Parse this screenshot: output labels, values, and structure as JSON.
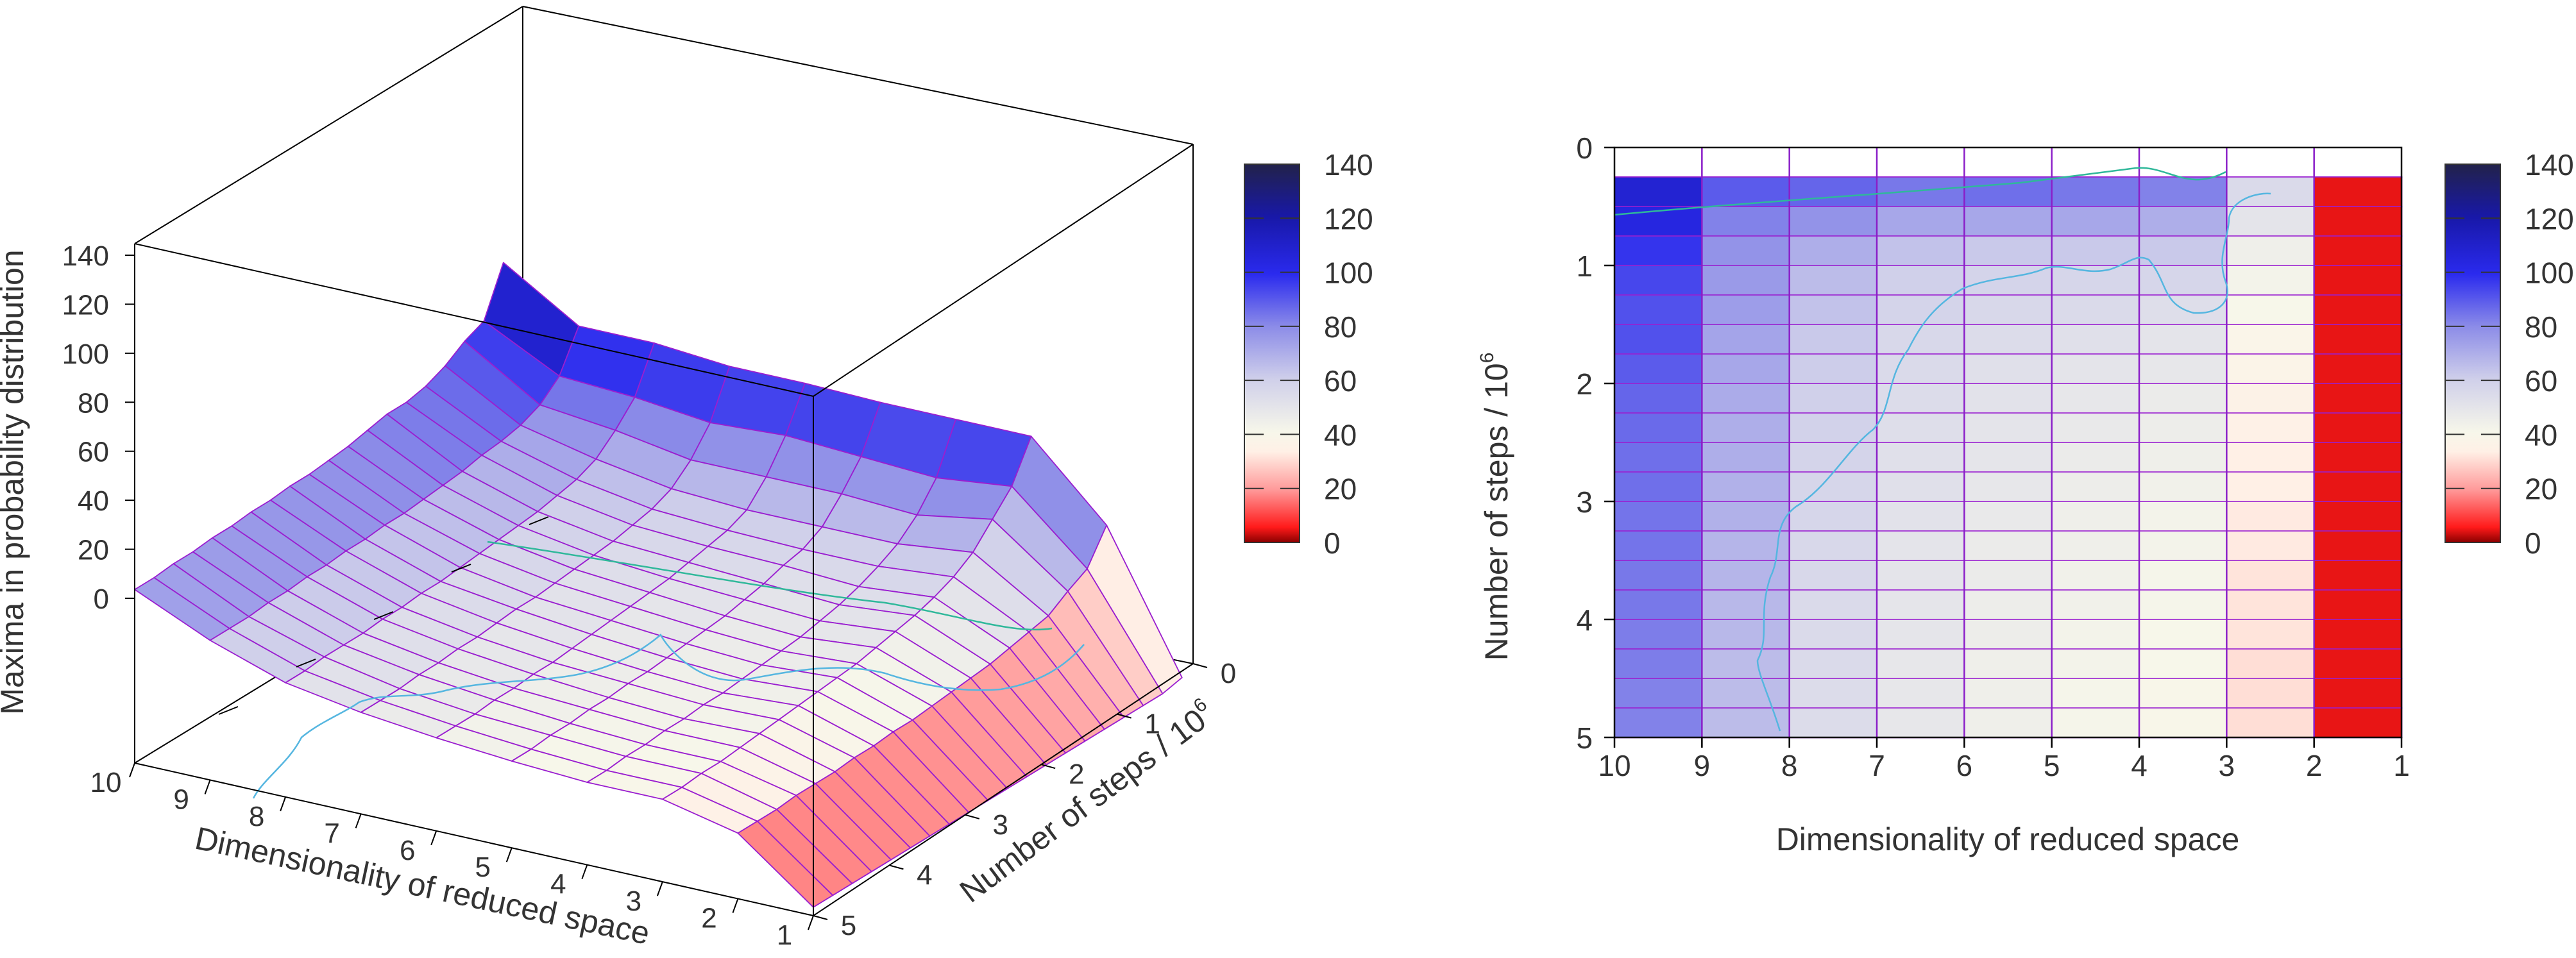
{
  "chart_data": [
    {
      "type": "surface3d",
      "title": "",
      "xlabel": "Dimensionality of reduced space",
      "ylabel": "Number of steps / 10",
      "ylabel_sup": "6",
      "zlabel": "Maxima in probability distribution",
      "x_ticks": [
        "10",
        "9",
        "8",
        "7",
        "6",
        "5",
        "4",
        "3",
        "2",
        "1"
      ],
      "y_ticks": [
        "0",
        "1",
        "2",
        "3",
        "4",
        "5"
      ],
      "z_ticks": [
        "0",
        "20",
        "40",
        "60",
        "80",
        "100",
        "120",
        "140"
      ],
      "xlim": [
        1,
        10
      ],
      "ylim": [
        0,
        5
      ],
      "zlim": [
        0,
        140
      ],
      "dims": [
        10,
        9,
        8,
        7,
        6,
        5,
        4,
        3,
        2,
        1
      ],
      "steps": [
        0.25,
        0.5,
        0.75,
        1.0,
        1.25,
        1.5,
        1.75,
        2.0,
        2.25,
        2.5,
        2.75,
        3.0,
        3.25,
        3.5,
        3.75,
        4.0,
        4.25,
        4.5,
        4.75,
        5.0
      ],
      "colorbar": {
        "ticks": [
          "0",
          "20",
          "40",
          "60",
          "80",
          "100",
          "120",
          "140"
        ],
        "range": [
          0,
          140
        ]
      },
      "grid": false
    },
    {
      "type": "heatmap",
      "title": "",
      "xlabel": "Dimensionality of reduced space",
      "ylabel": "Number of steps / 10",
      "ylabel_sup": "6",
      "x_ticks": [
        "10",
        "9",
        "8",
        "7",
        "6",
        "5",
        "4",
        "3",
        "2",
        "1"
      ],
      "y_ticks": [
        "0",
        "1",
        "2",
        "3",
        "4",
        "5"
      ],
      "xlim": [
        10,
        1
      ],
      "ylim": [
        0,
        5
      ],
      "colorbar": {
        "ticks": [
          "0",
          "20",
          "40",
          "60",
          "80",
          "100",
          "120",
          "140"
        ],
        "range": [
          0,
          140
        ]
      },
      "z_approx": [
        [
          130,
          108,
          108,
          105,
          105,
          104,
          104,
          104,
          70,
          6
        ],
        [
          108,
          90,
          88,
          84,
          86,
          84,
          82,
          86,
          55,
          4
        ],
        [
          104,
          82,
          78,
          72,
          72,
          72,
          70,
          76,
          50,
          4
        ],
        [
          98,
          78,
          70,
          64,
          62,
          62,
          62,
          66,
          44,
          4
        ],
        [
          94,
          76,
          66,
          60,
          58,
          57,
          57,
          60,
          42,
          4
        ],
        [
          92,
          75,
          64,
          58,
          56,
          55,
          53,
          56,
          40,
          4
        ],
        [
          92,
          73,
          62,
          56,
          54,
          52,
          50,
          53,
          38,
          4
        ],
        [
          90,
          72,
          61,
          55,
          52,
          50,
          48,
          51,
          37,
          4
        ],
        [
          88,
          71,
          60,
          54,
          51,
          48,
          46,
          49,
          36,
          4
        ],
        [
          87,
          70,
          59,
          53,
          50,
          47,
          45,
          47,
          35,
          4
        ],
        [
          86,
          70,
          58,
          52,
          49,
          46,
          44,
          46,
          34,
          4
        ],
        [
          86,
          69,
          57,
          52,
          48,
          45,
          43,
          45,
          34,
          4
        ],
        [
          85,
          69,
          57,
          51,
          47,
          44,
          42,
          44,
          33,
          4
        ],
        [
          85,
          68,
          56,
          50,
          46,
          44,
          42,
          43,
          33,
          4
        ],
        [
          84,
          68,
          56,
          50,
          46,
          43,
          41,
          42,
          32,
          4
        ],
        [
          84,
          67,
          55,
          49,
          45,
          43,
          41,
          41,
          32,
          4
        ],
        [
          83,
          67,
          55,
          49,
          45,
          42,
          40,
          40,
          32,
          4
        ],
        [
          83,
          66,
          55,
          48,
          44,
          42,
          40,
          40,
          31,
          4
        ],
        [
          82,
          66,
          54,
          48,
          44,
          41,
          39,
          39,
          31,
          4
        ],
        [
          82,
          66,
          54,
          48,
          44,
          41,
          39,
          39,
          31,
          4
        ]
      ]
    }
  ]
}
